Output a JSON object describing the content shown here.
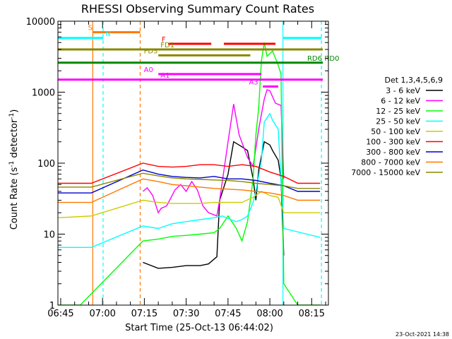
{
  "chart_data": {
    "type": "line",
    "title": "RHESSI Observing Summary Count Rates",
    "xlabel": "Start Time (25-Oct-13 06:44:02)",
    "ylabel_main": "Count Rate (s",
    "ylabel_sup1": "-1",
    "ylabel_mid": " detector",
    "ylabel_sup2": "-1",
    "ylabel_end": ")",
    "timestamp": "23-Oct-2021 14:38",
    "x_start": "06:44:02",
    "xlim_min": [
      404,
      501
    ],
    "ylim": [
      1,
      10000
    ],
    "y_scale": "log",
    "x_ticks": [
      {
        "min": 405,
        "label": "06:45"
      },
      {
        "min": 420,
        "label": "07:00"
      },
      {
        "min": 435,
        "label": "07:15"
      },
      {
        "min": 450,
        "label": "07:30"
      },
      {
        "min": 465,
        "label": "07:45"
      },
      {
        "min": 480,
        "label": "08:00"
      },
      {
        "min": 495,
        "label": "08:15"
      }
    ],
    "y_ticks": [
      {
        "value": 1,
        "label": "1"
      },
      {
        "value": 10,
        "label": "10"
      },
      {
        "value": 100,
        "label": "100"
      },
      {
        "value": 1000,
        "label": "1000"
      },
      {
        "value": 10000,
        "label": "10000"
      }
    ],
    "legend_title": "Det 1,3,4,5,6,9",
    "legend_placement": "right",
    "series": [
      {
        "name": "3 - 6 keV",
        "color": "#000000",
        "points": [
          [
            434.5,
            4
          ],
          [
            440,
            3.3
          ],
          [
            445,
            3.4
          ],
          [
            450,
            3.6
          ],
          [
            455,
            3.6
          ],
          [
            458,
            3.8
          ],
          [
            461,
            4.8
          ],
          [
            462,
            30
          ],
          [
            465,
            70
          ],
          [
            467,
            200
          ],
          [
            470,
            170
          ],
          [
            472,
            150
          ],
          [
            474,
            60
          ],
          [
            475,
            30
          ],
          [
            476,
            80
          ],
          [
            478,
            200
          ],
          [
            480,
            180
          ],
          [
            481,
            150
          ],
          [
            483,
            110
          ],
          [
            484,
            60
          ],
          [
            485,
            5
          ]
        ]
      },
      {
        "name": "6 - 12 keV",
        "color": "#ff00ff",
        "points": [
          [
            434.5,
            40
          ],
          [
            436,
            45
          ],
          [
            438,
            35
          ],
          [
            440,
            20
          ],
          [
            441,
            23
          ],
          [
            443,
            25
          ],
          [
            446,
            42
          ],
          [
            448,
            50
          ],
          [
            450,
            40
          ],
          [
            452,
            55
          ],
          [
            454,
            42
          ],
          [
            456,
            25
          ],
          [
            458,
            20
          ],
          [
            461,
            18
          ],
          [
            462,
            30
          ],
          [
            465,
            200
          ],
          [
            467,
            680
          ],
          [
            469,
            250
          ],
          [
            472,
            120
          ],
          [
            474,
            90
          ],
          [
            476,
            300
          ],
          [
            478,
            800
          ],
          [
            479,
            1080
          ],
          [
            480,
            1050
          ],
          [
            482,
            700
          ],
          [
            484,
            650
          ],
          [
            485,
            60
          ]
        ]
      },
      {
        "name": "12 - 25 keV",
        "color": "#00ff00",
        "points": [
          [
            404,
            1
          ],
          [
            412,
            1
          ],
          [
            434.5,
            8
          ],
          [
            440,
            8.5
          ],
          [
            445,
            9.3
          ],
          [
            450,
            9.6
          ],
          [
            455,
            10
          ],
          [
            460,
            10.5
          ],
          [
            462,
            12
          ],
          [
            465,
            18
          ],
          [
            468,
            12
          ],
          [
            470,
            8
          ],
          [
            472,
            15
          ],
          [
            474,
            60
          ],
          [
            475,
            250
          ],
          [
            476,
            600
          ],
          [
            477,
            2800
          ],
          [
            478,
            5000
          ],
          [
            479,
            3200
          ],
          [
            481,
            3800
          ],
          [
            483,
            2400
          ],
          [
            484,
            1800
          ],
          [
            485,
            2
          ],
          [
            490,
            1
          ],
          [
            498,
            1
          ]
        ]
      },
      {
        "name": "25 - 50 keV",
        "color": "#00ffff",
        "points": [
          [
            404,
            6.5
          ],
          [
            416,
            6.5
          ],
          [
            434.5,
            13
          ],
          [
            440,
            12
          ],
          [
            445,
            14
          ],
          [
            450,
            15
          ],
          [
            455,
            16
          ],
          [
            460,
            17
          ],
          [
            463,
            18
          ],
          [
            466,
            16
          ],
          [
            468,
            15
          ],
          [
            470,
            16
          ],
          [
            472,
            18
          ],
          [
            474,
            28
          ],
          [
            475,
            40
          ],
          [
            477,
            110
          ],
          [
            478,
            380
          ],
          [
            480,
            500
          ],
          [
            481,
            400
          ],
          [
            483,
            300
          ],
          [
            485,
            12
          ],
          [
            498,
            9
          ]
        ]
      },
      {
        "name": "50 - 100 keV",
        "color": "#cccc00",
        "points": [
          [
            404,
            17
          ],
          [
            416,
            18
          ],
          [
            434.5,
            30
          ],
          [
            440,
            28
          ],
          [
            445,
            27
          ],
          [
            450,
            27
          ],
          [
            455,
            27
          ],
          [
            460,
            28
          ],
          [
            465,
            28
          ],
          [
            470,
            28
          ],
          [
            474,
            33
          ],
          [
            477,
            40
          ],
          [
            480,
            35
          ],
          [
            483,
            33
          ],
          [
            485,
            20
          ],
          [
            498,
            20
          ]
        ]
      },
      {
        "name": "100 - 300 keV",
        "color": "#ff0000",
        "points": [
          [
            404,
            52
          ],
          [
            416,
            52
          ],
          [
            434.5,
            100
          ],
          [
            440,
            90
          ],
          [
            445,
            88
          ],
          [
            450,
            90
          ],
          [
            455,
            95
          ],
          [
            460,
            95
          ],
          [
            465,
            90
          ],
          [
            470,
            95
          ],
          [
            475,
            90
          ],
          [
            480,
            75
          ],
          [
            485,
            65
          ],
          [
            490,
            52
          ],
          [
            498,
            52
          ]
        ]
      },
      {
        "name": "300 - 800 keV",
        "color": "#0000cc",
        "points": [
          [
            404,
            38
          ],
          [
            416,
            38
          ],
          [
            434.5,
            80
          ],
          [
            440,
            70
          ],
          [
            445,
            65
          ],
          [
            450,
            63
          ],
          [
            455,
            62
          ],
          [
            460,
            65
          ],
          [
            465,
            60
          ],
          [
            470,
            60
          ],
          [
            475,
            57
          ],
          [
            480,
            52
          ],
          [
            485,
            48
          ],
          [
            490,
            40
          ],
          [
            498,
            40
          ]
        ]
      },
      {
        "name": "800 - 7000 keV",
        "color": "#ff7700",
        "points": [
          [
            404,
            28
          ],
          [
            416,
            28
          ],
          [
            434.5,
            60
          ],
          [
            440,
            55
          ],
          [
            445,
            50
          ],
          [
            450,
            48
          ],
          [
            455,
            46
          ],
          [
            460,
            44
          ],
          [
            465,
            43
          ],
          [
            470,
            42
          ],
          [
            475,
            40
          ],
          [
            480,
            38
          ],
          [
            485,
            35
          ],
          [
            490,
            30
          ],
          [
            498,
            30
          ]
        ]
      },
      {
        "name": "7000 - 15000 keV",
        "color": "#888800",
        "points": [
          [
            404,
            46
          ],
          [
            416,
            46
          ],
          [
            434.5,
            72
          ],
          [
            440,
            66
          ],
          [
            445,
            62
          ],
          [
            450,
            60
          ],
          [
            455,
            59
          ],
          [
            460,
            58
          ],
          [
            465,
            57
          ],
          [
            470,
            55
          ],
          [
            475,
            52
          ],
          [
            480,
            50
          ],
          [
            485,
            48
          ],
          [
            490,
            44
          ],
          [
            498,
            44
          ]
        ]
      }
    ],
    "vlines": [
      {
        "min": 416.5,
        "color": "#ff7700",
        "dash": false
      },
      {
        "min": 420.2,
        "color": "#00ffff",
        "dash": true
      },
      {
        "min": 433.5,
        "color": "#ff7700",
        "dash": true
      },
      {
        "min": 484.7,
        "color": "#00ffff",
        "dash": false
      },
      {
        "min": 498.5,
        "color": "#00ffff",
        "dash": true
      }
    ],
    "flags": [
      {
        "label": "S",
        "color": "#ff7700",
        "y": 7000,
        "segments": [
          [
            416.5,
            433.5
          ]
        ],
        "label_min": 414.8
      },
      {
        "label": "N",
        "color": "#00ffff",
        "y": 5800,
        "segments": [
          [
            404,
            420.2
          ],
          [
            484.7,
            498.5
          ]
        ],
        "label_min": 421
      },
      {
        "label": "F",
        "color": "#ff0000",
        "y": 4800,
        "segments": [
          [
            443.5,
            459
          ],
          [
            463.5,
            482
          ]
        ],
        "label_min": 441.2
      },
      {
        "label": "FD1",
        "color": "#888800",
        "y": 4000,
        "segments": [
          [
            404,
            499
          ]
        ],
        "label_min": 440.8
      },
      {
        "label": "FD3",
        "color": "#888800",
        "y": 3300,
        "segments": [
          [
            440,
            473
          ]
        ],
        "label_min": 434.8
      },
      {
        "label": "RD6",
        "color": "#008800",
        "y": 2600,
        "segments": [
          [
            404,
            499
          ]
        ],
        "label_min": 493.4
      },
      {
        "label": "RD0",
        "color": "#008800",
        "y": 2600,
        "segments": [],
        "label_min": 499.6
      },
      {
        "label": "A0",
        "color": "#ff00ff",
        "y": 1800,
        "segments": [
          [
            440,
            477
          ]
        ],
        "label_min": 434.8
      },
      {
        "label": "A1",
        "color": "#ff00ff",
        "y": 1500,
        "segments": [
          [
            404,
            499
          ]
        ],
        "label_min": 440.8
      },
      {
        "label": "A3",
        "color": "#ff00ff",
        "y": 1200,
        "segments": [
          [
            477.5,
            483
          ]
        ],
        "label_min": 472.5
      }
    ]
  }
}
